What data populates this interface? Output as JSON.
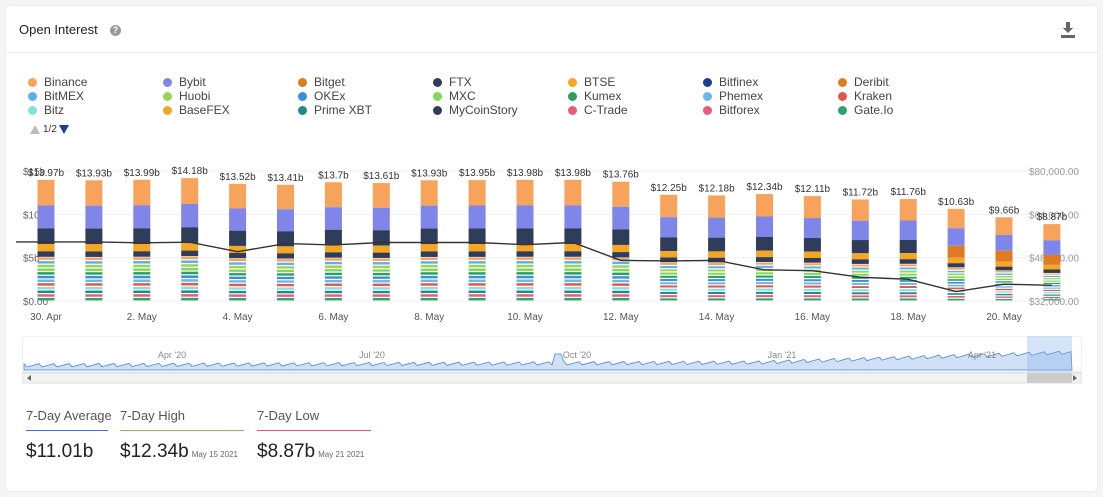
{
  "header": {
    "title": "Open Interest",
    "help_icon": "?",
    "download_icon": "download-icon"
  },
  "legend": {
    "items": [
      {
        "label": "Binance",
        "color": "#f7a35c"
      },
      {
        "label": "Bybit",
        "color": "#8085e9"
      },
      {
        "label": "Bitget",
        "color": "#e07b24"
      },
      {
        "label": "FTX",
        "color": "#2f3c5a"
      },
      {
        "label": "BTSE",
        "color": "#f5a623"
      },
      {
        "label": "Bitfinex",
        "color": "#1d3f8f"
      },
      {
        "label": "Deribit",
        "color": "#e07b24"
      },
      {
        "label": "BitMEX",
        "color": "#5ab1ef"
      },
      {
        "label": "Huobi",
        "color": "#9bd15c"
      },
      {
        "label": "OKEx",
        "color": "#3a8fdc"
      },
      {
        "label": "MXC",
        "color": "#7ed957"
      },
      {
        "label": "Kumex",
        "color": "#2e9e5b"
      },
      {
        "label": "Phemex",
        "color": "#6bb7e8"
      },
      {
        "label": "Kraken",
        "color": "#e0574b"
      },
      {
        "label": "Bitz",
        "color": "#7fe3dc"
      },
      {
        "label": "BaseFEX",
        "color": "#f5a623"
      },
      {
        "label": "Prime XBT",
        "color": "#1f8a8a"
      },
      {
        "label": "MyCoinStory",
        "color": "#2f3c5a"
      },
      {
        "label": "C-Trade",
        "color": "#e85c7a"
      },
      {
        "label": "Bitforex",
        "color": "#e85c7a"
      },
      {
        "label": "Gate.Io",
        "color": "#2ea36b"
      }
    ],
    "page": "1/2"
  },
  "chart_data": {
    "type": "bar",
    "stacked": true,
    "categories": [
      "Apr 30",
      "May 1",
      "May 2",
      "May 3",
      "May 4",
      "May 5",
      "May 6",
      "May 7",
      "May 8",
      "May 9",
      "May 10",
      "May 11",
      "May 12",
      "May 13",
      "May 14",
      "May 15",
      "May 16",
      "May 17",
      "May 18",
      "May 19",
      "May 20",
      "May 21"
    ],
    "x_tick_labels": [
      "30. Apr",
      "2. May",
      "4. May",
      "6. May",
      "8. May",
      "10. May",
      "12. May",
      "14. May",
      "16. May",
      "18. May",
      "20. May"
    ],
    "totals_label": [
      "$13.97b",
      "$13.93b",
      "$13.99b",
      "$14.18b",
      "$13.52b",
      "$13.41b",
      "$13.7b",
      "$13.61b",
      "$13.93b",
      "$13.95b",
      "$13.98b",
      "$13.98b",
      "$13.76b",
      "$12.25b",
      "$12.18b",
      "$12.34b",
      "$12.11b",
      "$11.72b",
      "$11.76b",
      "$10.63b",
      "$9.66b",
      "$8.87b"
    ],
    "totals": [
      13.97,
      13.93,
      13.99,
      14.18,
      13.52,
      13.41,
      13.7,
      13.61,
      13.93,
      13.95,
      13.98,
      13.98,
      13.76,
      12.25,
      12.18,
      12.34,
      12.11,
      11.72,
      11.76,
      10.63,
      9.66,
      8.87
    ],
    "y_left": {
      "ticks": [
        "$0.00",
        "$5b",
        "$10b",
        "$15b"
      ],
      "range": [
        0,
        15
      ]
    },
    "y_right": {
      "ticks": [
        "$32,000.00",
        "$48,000.00",
        "$64,000.00",
        "$80,000.00"
      ],
      "range": [
        32000,
        80000
      ]
    },
    "price_line": {
      "name": "BTC Price",
      "values": [
        53800,
        53800,
        53500,
        53700,
        50200,
        53200,
        52700,
        53600,
        53600,
        53600,
        52800,
        53600,
        47000,
        46800,
        47000,
        43500,
        43200,
        40800,
        40000,
        35500,
        38200,
        37800
      ]
    }
  },
  "navigator": {
    "labels": [
      "Apr '20",
      "Jul '20",
      "Oct '20",
      "Jan '21",
      "Apr '21"
    ]
  },
  "stats": [
    {
      "label": "7-Day Average",
      "value": "$11.01b",
      "date": "",
      "color": "#3a6fd8"
    },
    {
      "label": "7-Day High",
      "value": "$12.34b",
      "date": "May 15 2021",
      "color": "#7ec850"
    },
    {
      "label": "7-Day Low",
      "value": "$8.87b",
      "date": "May 21 2021",
      "color": "#e05a5a"
    }
  ]
}
